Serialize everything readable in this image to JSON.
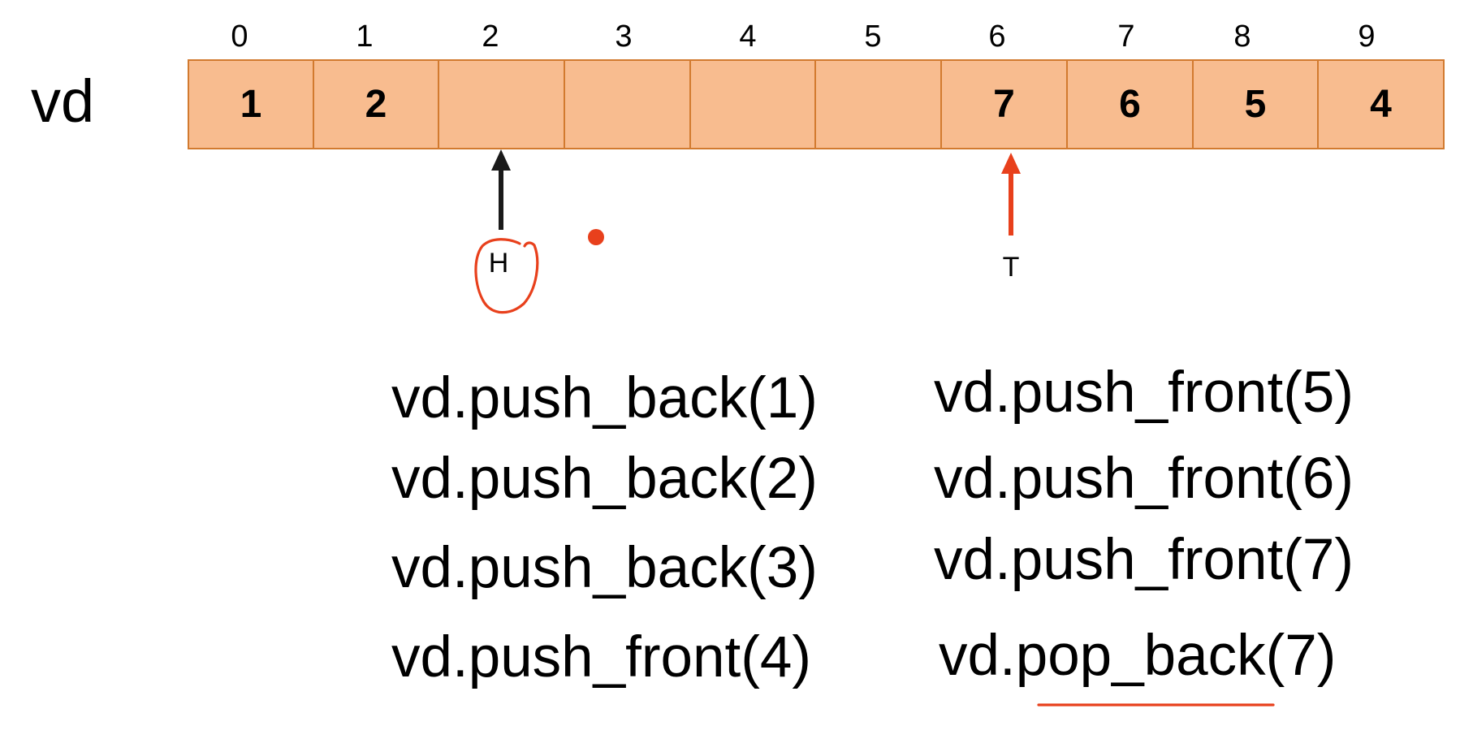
{
  "array_name": "vd",
  "indices": [
    "0",
    "1",
    "2",
    "3",
    "4",
    "5",
    "6",
    "7",
    "8",
    "9"
  ],
  "cells": [
    "1",
    "2",
    "",
    "",
    "",
    "",
    "7",
    "6",
    "5",
    "4"
  ],
  "pointers": {
    "head": {
      "label": "H",
      "index": 2,
      "color": "#1a1a1a"
    },
    "tail": {
      "label": "T",
      "index": 6,
      "color": "#e8401c"
    }
  },
  "operations": {
    "left": [
      "vd.push_back(1)",
      "vd.push_back(2)",
      "vd.push_back(3)",
      "vd.push_front(4)"
    ],
    "right": [
      "vd.push_front(5)",
      "vd.push_front(6)",
      "vd.push_front(7)",
      "vd.pop_back(7)"
    ]
  },
  "colors": {
    "cell_fill": "#f8bc8f",
    "cell_border": "#d27a2f",
    "annotation": "#e8401c"
  }
}
